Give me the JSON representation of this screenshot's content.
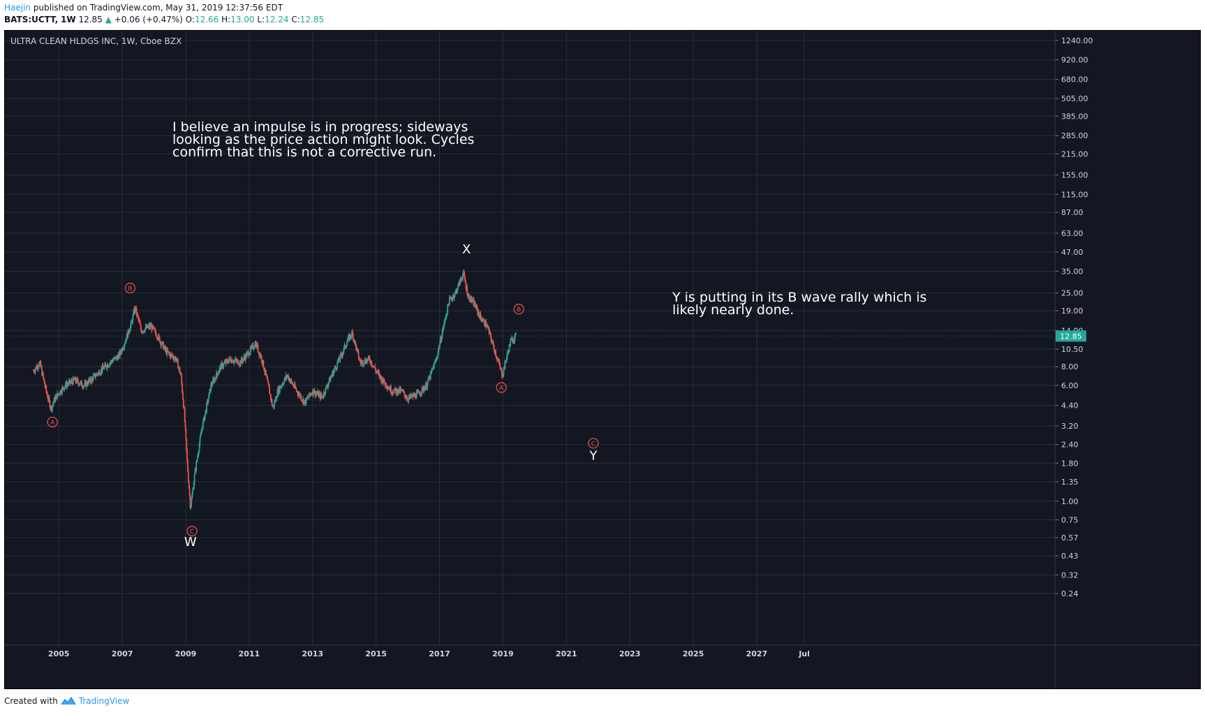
{
  "header": {
    "author": "Haejin",
    "published_text": "published on TradingView.com, May 31, 2019 12:37:56 EDT",
    "symbol": "BATS:UCTT",
    "interval": "1W",
    "last": "12.85",
    "change": "+0.06 (+0.47%)",
    "open_label": "O:",
    "open": "12.66",
    "high_label": "H:",
    "high": "13.00",
    "low_label": "L:",
    "low": "12.24",
    "close_label": "C:",
    "close": "12.85"
  },
  "footer": {
    "created_with": "Created with",
    "brand": "TradingView"
  },
  "colors": {
    "background": "#131722",
    "grid": "#2a2e39",
    "up": "#26a69a",
    "down": "#ef5350",
    "badge": "#ef5350",
    "price_tag": "#26a69a"
  },
  "chart_data": {
    "type": "candlestick",
    "title": "ULTRA CLEAN HLDGS INC, 1W, Cboe BZX",
    "y_scale": "log",
    "grid": true,
    "y_ticks": [
      "1240.00",
      "920.00",
      "680.00",
      "505.00",
      "385.00",
      "285.00",
      "215.00",
      "155.00",
      "115.00",
      "87.00",
      "63.00",
      "47.00",
      "35.00",
      "25.00",
      "19.00",
      "14.00",
      "10.50",
      "8.00",
      "6.00",
      "4.40",
      "3.20",
      "2.40",
      "1.80",
      "1.35",
      "1.00",
      "0.75",
      "0.57",
      "0.43",
      "0.32",
      "0.24"
    ],
    "x_ticks": [
      {
        "label": "2005",
        "t": 2005.0
      },
      {
        "label": "2007",
        "t": 2007.0
      },
      {
        "label": "2009",
        "t": 2009.0
      },
      {
        "label": "2011",
        "t": 2011.0
      },
      {
        "label": "2013",
        "t": 2013.0
      },
      {
        "label": "2015",
        "t": 2015.0
      },
      {
        "label": "2017",
        "t": 2017.0
      },
      {
        "label": "2019",
        "t": 2019.0
      },
      {
        "label": "2021",
        "t": 2021.0
      },
      {
        "label": "2023",
        "t": 2023.0
      },
      {
        "label": "2025",
        "t": 2025.0
      },
      {
        "label": "2027",
        "t": 2027.0
      },
      {
        "label": "Jul",
        "t": 2028.5
      }
    ],
    "x_range": [
      2003.3,
      2036.4
    ],
    "current_price": "12.85",
    "price_path": [
      [
        2004.2,
        7.5
      ],
      [
        2004.4,
        8.5
      ],
      [
        2004.6,
        5.5
      ],
      [
        2004.75,
        4.2
      ],
      [
        2004.9,
        5.0
      ],
      [
        2005.2,
        6.0
      ],
      [
        2005.5,
        6.5
      ],
      [
        2005.8,
        6.0
      ],
      [
        2006.0,
        6.5
      ],
      [
        2006.3,
        7.5
      ],
      [
        2006.6,
        8.5
      ],
      [
        2006.9,
        9.5
      ],
      [
        2007.1,
        12.0
      ],
      [
        2007.3,
        16.0
      ],
      [
        2007.4,
        20.0
      ],
      [
        2007.6,
        14.0
      ],
      [
        2007.9,
        15.0
      ],
      [
        2008.1,
        13.0
      ],
      [
        2008.4,
        10.0
      ],
      [
        2008.7,
        9.0
      ],
      [
        2008.85,
        7.0
      ],
      [
        2008.95,
        4.0
      ],
      [
        2009.05,
        1.8
      ],
      [
        2009.15,
        0.9
      ],
      [
        2009.3,
        1.6
      ],
      [
        2009.5,
        3.0
      ],
      [
        2009.8,
        6.0
      ],
      [
        2010.1,
        8.0
      ],
      [
        2010.4,
        9.0
      ],
      [
        2010.7,
        8.5
      ],
      [
        2011.0,
        10.0
      ],
      [
        2011.2,
        11.5
      ],
      [
        2011.4,
        9.0
      ],
      [
        2011.6,
        6.0
      ],
      [
        2011.75,
        4.2
      ],
      [
        2011.9,
        5.5
      ],
      [
        2012.2,
        7.0
      ],
      [
        2012.5,
        5.5
      ],
      [
        2012.75,
        4.6
      ],
      [
        2013.0,
        5.5
      ],
      [
        2013.3,
        5.0
      ],
      [
        2013.6,
        7.0
      ],
      [
        2013.9,
        9.5
      ],
      [
        2014.1,
        12.0
      ],
      [
        2014.25,
        13.5
      ],
      [
        2014.5,
        8.5
      ],
      [
        2014.8,
        9.0
      ],
      [
        2015.0,
        7.5
      ],
      [
        2015.2,
        6.5
      ],
      [
        2015.5,
        5.5
      ],
      [
        2015.8,
        5.5
      ],
      [
        2016.0,
        4.9
      ],
      [
        2016.3,
        5.2
      ],
      [
        2016.6,
        6.0
      ],
      [
        2016.9,
        9.0
      ],
      [
        2017.1,
        14.0
      ],
      [
        2017.3,
        22.0
      ],
      [
        2017.5,
        25.0
      ],
      [
        2017.75,
        34.0
      ],
      [
        2017.9,
        24.0
      ],
      [
        2018.1,
        21.0
      ],
      [
        2018.3,
        17.0
      ],
      [
        2018.5,
        15.0
      ],
      [
        2018.7,
        11.0
      ],
      [
        2018.9,
        8.0
      ],
      [
        2018.98,
        7.0
      ],
      [
        2019.1,
        9.0
      ],
      [
        2019.25,
        12.0
      ],
      [
        2019.42,
        12.85
      ]
    ],
    "annotations": [
      {
        "kind": "text",
        "lines": [
          "I believe an impulse is in progress; sideways",
          "looking as the price action might look. Cycles",
          "confirm that this is not a corrective run."
        ]
      },
      {
        "kind": "text",
        "lines": [
          "Y is putting in its B wave rally which is",
          "likely nearly done."
        ]
      }
    ],
    "wave_badges": [
      {
        "label": "A",
        "t": 2004.8,
        "price": 3.4
      },
      {
        "label": "B",
        "t": 2007.25,
        "price": 27.0
      },
      {
        "label": "C",
        "t": 2009.2,
        "price": 0.63
      },
      {
        "label": "A",
        "t": 2018.95,
        "price": 5.8
      },
      {
        "label": "B",
        "t": 2019.5,
        "price": 19.5
      },
      {
        "label": "C",
        "t": 2021.85,
        "price": 2.45
      }
    ],
    "wave_labels": [
      {
        "label": "W",
        "t": 2009.15,
        "price": 0.5
      },
      {
        "label": "X",
        "t": 2017.85,
        "price": 46.0
      },
      {
        "label": "Y",
        "t": 2021.85,
        "price": 1.9
      }
    ]
  }
}
